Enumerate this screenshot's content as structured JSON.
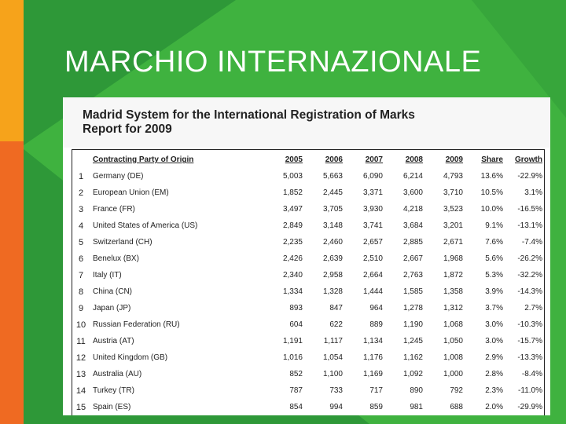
{
  "slide": {
    "title": "MARCHIO INTERNAZIONALE",
    "colors": {
      "orange": "#f6a31b",
      "orange_dark": "#ef6a22",
      "green": "#3fb23f",
      "green_dark": "#2e9838"
    }
  },
  "document": {
    "title_line1": "Madrid System for the International Registration of Marks",
    "title_line2": "Report for 2009",
    "headers": {
      "party": "Contracting Party of Origin",
      "y2005": "2005",
      "y2006": "2006",
      "y2007": "2007",
      "y2008": "2008",
      "y2009": "2009",
      "share": "Share",
      "growth": "Growth"
    },
    "rows": [
      {
        "rank": "1",
        "party": "Germany (DE)",
        "y2005": "5,003",
        "y2006": "5,663",
        "y2007": "6,090",
        "y2008": "6,214",
        "y2009": "4,793",
        "share": "13.6%",
        "growth": "-22.9%"
      },
      {
        "rank": "2",
        "party": "European Union (EM)",
        "y2005": "1,852",
        "y2006": "2,445",
        "y2007": "3,371",
        "y2008": "3,600",
        "y2009": "3,710",
        "share": "10.5%",
        "growth": "3.1%"
      },
      {
        "rank": "3",
        "party": "France (FR)",
        "y2005": "3,497",
        "y2006": "3,705",
        "y2007": "3,930",
        "y2008": "4,218",
        "y2009": "3,523",
        "share": "10.0%",
        "growth": "-16.5%"
      },
      {
        "rank": "4",
        "party": "United States of America (US)",
        "y2005": "2,849",
        "y2006": "3,148",
        "y2007": "3,741",
        "y2008": "3,684",
        "y2009": "3,201",
        "share": "9.1%",
        "growth": "-13.1%"
      },
      {
        "rank": "5",
        "party": "Switzerland (CH)",
        "y2005": "2,235",
        "y2006": "2,460",
        "y2007": "2,657",
        "y2008": "2,885",
        "y2009": "2,671",
        "share": "7.6%",
        "growth": "-7.4%"
      },
      {
        "rank": "6",
        "party": "Benelux (BX)",
        "y2005": "2,426",
        "y2006": "2,639",
        "y2007": "2,510",
        "y2008": "2,667",
        "y2009": "1,968",
        "share": "5.6%",
        "growth": "-26.2%"
      },
      {
        "rank": "7",
        "party": "Italy (IT)",
        "y2005": "2,340",
        "y2006": "2,958",
        "y2007": "2,664",
        "y2008": "2,763",
        "y2009": "1,872",
        "share": "5.3%",
        "growth": "-32.2%"
      },
      {
        "rank": "8",
        "party": "China (CN)",
        "y2005": "1,334",
        "y2006": "1,328",
        "y2007": "1,444",
        "y2008": "1,585",
        "y2009": "1,358",
        "share": "3.9%",
        "growth": "-14.3%"
      },
      {
        "rank": "9",
        "party": "Japan (JP)",
        "y2005": "893",
        "y2006": "847",
        "y2007": "964",
        "y2008": "1,278",
        "y2009": "1,312",
        "share": "3.7%",
        "growth": "2.7%"
      },
      {
        "rank": "10",
        "party": "Russian Federation (RU)",
        "y2005": "604",
        "y2006": "622",
        "y2007": "889",
        "y2008": "1,190",
        "y2009": "1,068",
        "share": "3.0%",
        "growth": "-10.3%"
      },
      {
        "rank": "11",
        "party": "Austria (AT)",
        "y2005": "1,191",
        "y2006": "1,117",
        "y2007": "1,134",
        "y2008": "1,245",
        "y2009": "1,050",
        "share": "3.0%",
        "growth": "-15.7%"
      },
      {
        "rank": "12",
        "party": "United Kingdom (GB)",
        "y2005": "1,016",
        "y2006": "1,054",
        "y2007": "1,176",
        "y2008": "1,162",
        "y2009": "1,008",
        "share": "2.9%",
        "growth": "-13.3%"
      },
      {
        "rank": "13",
        "party": "Australia (AU)",
        "y2005": "852",
        "y2006": "1,100",
        "y2007": "1,169",
        "y2008": "1,092",
        "y2009": "1,000",
        "share": "2.8%",
        "growth": "-8.4%"
      },
      {
        "rank": "14",
        "party": "Turkey (TR)",
        "y2005": "787",
        "y2006": "733",
        "y2007": "717",
        "y2008": "890",
        "y2009": "792",
        "share": "2.3%",
        "growth": "-11.0%"
      },
      {
        "rank": "15",
        "party": "Spain (ES)",
        "y2005": "854",
        "y2006": "994",
        "y2007": "859",
        "y2008": "981",
        "y2009": "688",
        "share": "2.0%",
        "growth": "-29.9%"
      }
    ]
  }
}
